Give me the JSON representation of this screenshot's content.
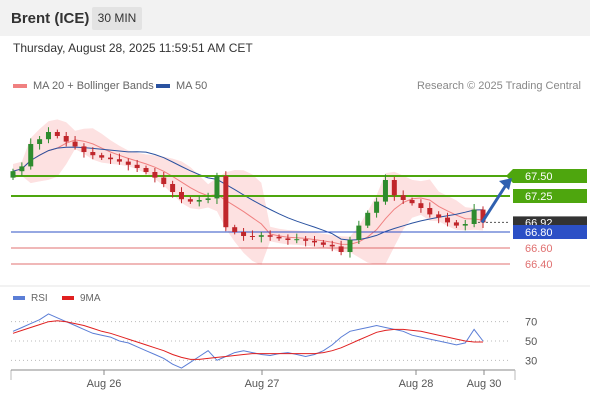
{
  "header": {
    "instrument": "Brent (ICE)",
    "timeframe": "30 MIN"
  },
  "timestamp": "Thursday, August 28, 2025 11:59:51 AM CET",
  "legend": {
    "ma20_label": "MA 20 + Bollinger Bands",
    "ma50_label": "MA 50",
    "credit": "Research © 2025 Trading Central"
  },
  "rsi_legend": {
    "rsi_label": "RSI",
    "ma_label": "9MA"
  },
  "colors": {
    "bullish_candle": "#2e8b2e",
    "bearish_candle": "#c0262b",
    "ma20": "#f08080",
    "bollinger_fill": "#fde1e1",
    "ma50": "#2a52a0",
    "resistance": "#4ea60e",
    "support_blue": "#2c50c6",
    "support_red": "#e07070",
    "current_price_box": "#333333",
    "arrow": "#2f60b0",
    "rsi": "#5b7ed6",
    "rsi_ma": "#e02020"
  },
  "chart_data": [
    {
      "type": "candlestick",
      "title": "",
      "x_labels": [
        "Aug 26",
        "Aug 27",
        "Aug 28",
        "Aug 30"
      ],
      "ylim": [
        66.2,
        68.3
      ],
      "current_price": 66.92,
      "levels": [
        {
          "value": 67.5,
          "label": "67.50",
          "kind": "resistance"
        },
        {
          "value": 67.25,
          "label": "67.25",
          "kind": "resistance"
        },
        {
          "value": 66.92,
          "label": "66.92",
          "kind": "current"
        },
        {
          "value": 66.8,
          "label": "66.80",
          "kind": "support-pivot"
        },
        {
          "value": 66.6,
          "label": "66.60",
          "kind": "support"
        },
        {
          "value": 66.4,
          "label": "66.40",
          "kind": "support"
        }
      ],
      "projection": {
        "from": 66.92,
        "to": 67.5,
        "direction": "up"
      },
      "overlays": [
        "MA 20",
        "Bollinger Bands",
        "MA 50"
      ],
      "closes": [
        67.56,
        67.62,
        67.9,
        67.96,
        68.05,
        68.0,
        67.93,
        67.87,
        67.8,
        67.76,
        67.73,
        67.71,
        67.68,
        67.64,
        67.6,
        67.55,
        67.48,
        67.4,
        67.3,
        67.21,
        67.18,
        67.2,
        67.22,
        67.5,
        66.86,
        66.8,
        66.75,
        66.74,
        66.76,
        66.74,
        66.72,
        66.7,
        66.71,
        66.69,
        66.67,
        66.64,
        66.62,
        66.55,
        66.7,
        66.88,
        67.04,
        67.18,
        67.45,
        67.26,
        67.2,
        67.16,
        67.1,
        67.02,
        66.98,
        66.92,
        66.88,
        66.9,
        67.08,
        66.92
      ]
    },
    {
      "type": "line",
      "title": "",
      "name": "RSI",
      "yticks": [
        30,
        50,
        70
      ],
      "ylim": [
        20,
        80
      ],
      "series": [
        {
          "name": "RSI",
          "values": [
            60,
            64,
            68,
            72,
            78,
            74,
            70,
            66,
            62,
            58,
            56,
            54,
            50,
            48,
            44,
            40,
            36,
            32,
            26,
            22,
            28,
            34,
            40,
            30,
            34,
            38,
            40,
            38,
            36,
            35,
            37,
            38,
            36,
            34,
            36,
            40,
            46,
            54,
            60,
            62,
            64,
            66,
            64,
            62,
            60,
            56,
            54,
            52,
            50,
            48,
            46,
            48,
            62,
            50
          ]
        },
        {
          "name": "9MA",
          "values": [
            58,
            61,
            64,
            67,
            70,
            71,
            70,
            68,
            66,
            63,
            60,
            58,
            55,
            52,
            49,
            46,
            43,
            40,
            36,
            33,
            31,
            31,
            32,
            33,
            34,
            35,
            36,
            37,
            37,
            37,
            37,
            37,
            37,
            37,
            37,
            38,
            40,
            43,
            47,
            51,
            55,
            59,
            61,
            62,
            62,
            61,
            60,
            58,
            56,
            54,
            52,
            50,
            49,
            49
          ]
        }
      ]
    }
  ]
}
